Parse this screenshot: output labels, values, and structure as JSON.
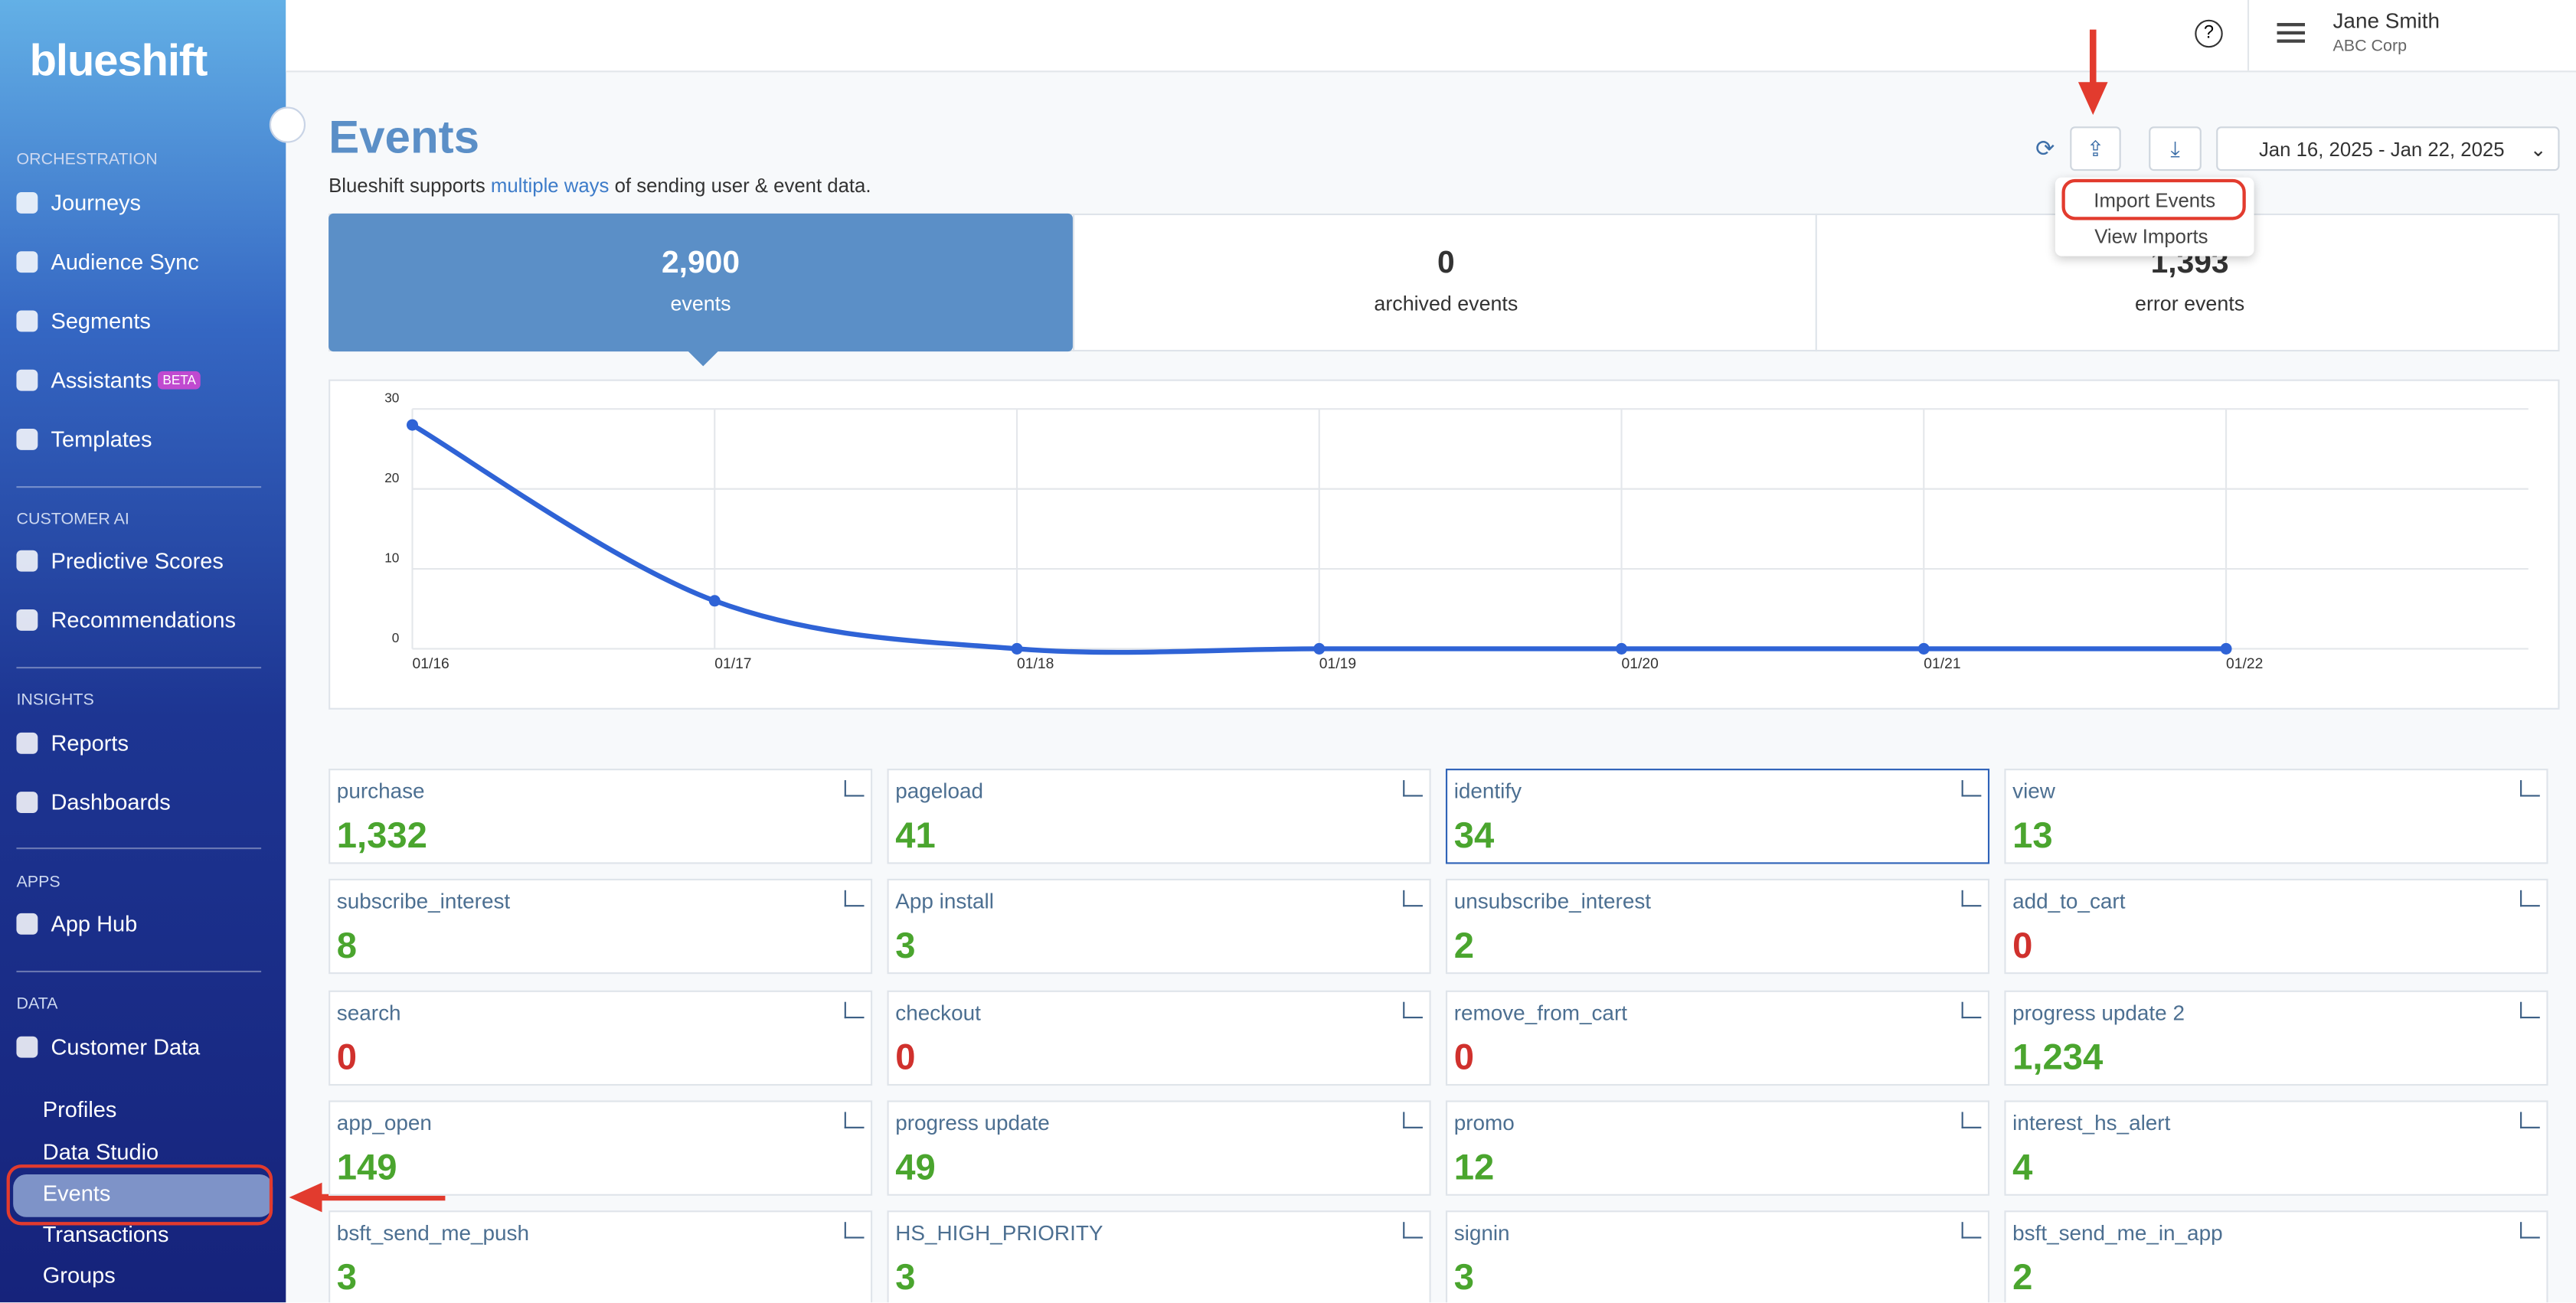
{
  "sidebar": {
    "logo": "blueshift",
    "badge": "BETA",
    "sections": [
      {
        "title": "ORCHESTRATION",
        "items": [
          "Journeys",
          "Audience Sync",
          "Segments",
          "Assistants",
          "Templates"
        ]
      },
      {
        "title": "CUSTOMER AI",
        "items": [
          "Predictive Scores",
          "Recommendations"
        ]
      },
      {
        "title": "INSIGHTS",
        "items": [
          "Reports",
          "Dashboards"
        ]
      },
      {
        "title": "APPS",
        "items": [
          "App Hub"
        ]
      },
      {
        "title": "DATA",
        "items": [
          "Customer Data"
        ]
      }
    ],
    "subitems": [
      "Profiles",
      "Data Studio",
      "Events",
      "Transactions",
      "Groups"
    ]
  },
  "header": {
    "user": "Jane Smith",
    "company": "ABC Corp"
  },
  "page": {
    "title": "Events",
    "subtitle_start": "Blueshift supports",
    "subtitle_link": "multiple ways",
    "subtitle_end": "of sending user & event data.",
    "date_range": "Jan 16, 2025 - Jan 22, 2025",
    "menu": [
      "Import Events",
      "View Imports"
    ]
  },
  "stats": [
    {
      "value": "2,900",
      "label": "events"
    },
    {
      "value": "0",
      "label": "archived events"
    },
    {
      "value": "1,393",
      "label": "error events"
    }
  ],
  "chart": {
    "type": "line",
    "x": [
      "01/16",
      "01/17",
      "01/18",
      "01/19",
      "01/20",
      "01/21",
      "01/22"
    ],
    "values": [
      28,
      6,
      0,
      0,
      0,
      0,
      0
    ],
    "color": "#2f63d6",
    "ylim": [
      0,
      30
    ],
    "yticks": [
      0,
      10,
      20,
      30
    ],
    "grid": true
  },
  "events": [
    {
      "name": "purchase",
      "count": "1,332",
      "color": "#4aa52e"
    },
    {
      "name": "pageload",
      "count": "41",
      "color": "#4aa52e"
    },
    {
      "name": "identify",
      "count": "34",
      "color": "#4aa52e"
    },
    {
      "name": "view",
      "count": "13",
      "color": "#4aa52e"
    },
    {
      "name": "subscribe_interest",
      "count": "8",
      "color": "#4aa52e"
    },
    {
      "name": "App install",
      "count": "3",
      "color": "#4aa52e"
    },
    {
      "name": "unsubscribe_interest",
      "count": "2",
      "color": "#4aa52e"
    },
    {
      "name": "add_to_cart",
      "count": "0",
      "color": "#d0312d"
    },
    {
      "name": "search",
      "count": "0",
      "color": "#d0312d"
    },
    {
      "name": "checkout",
      "count": "0",
      "color": "#d0312d"
    },
    {
      "name": "remove_from_cart",
      "count": "0",
      "color": "#d0312d"
    },
    {
      "name": "progress update 2",
      "count": "1,234",
      "color": "#4aa52e"
    },
    {
      "name": "app_open",
      "count": "149",
      "color": "#4aa52e"
    },
    {
      "name": "progress update",
      "count": "49",
      "color": "#4aa52e"
    },
    {
      "name": "promo",
      "count": "12",
      "color": "#4aa52e"
    },
    {
      "name": "interest_hs_alert",
      "count": "4",
      "color": "#4aa52e"
    },
    {
      "name": "bsft_send_me_push",
      "count": "3",
      "color": "#4aa52e"
    },
    {
      "name": "HS_HIGH_PRIORITY",
      "count": "3",
      "color": "#4aa52e"
    },
    {
      "name": "signin",
      "count": "3",
      "color": "#4aa52e"
    },
    {
      "name": "bsft_send_me_in_app",
      "count": "2",
      "color": "#4aa52e"
    }
  ]
}
